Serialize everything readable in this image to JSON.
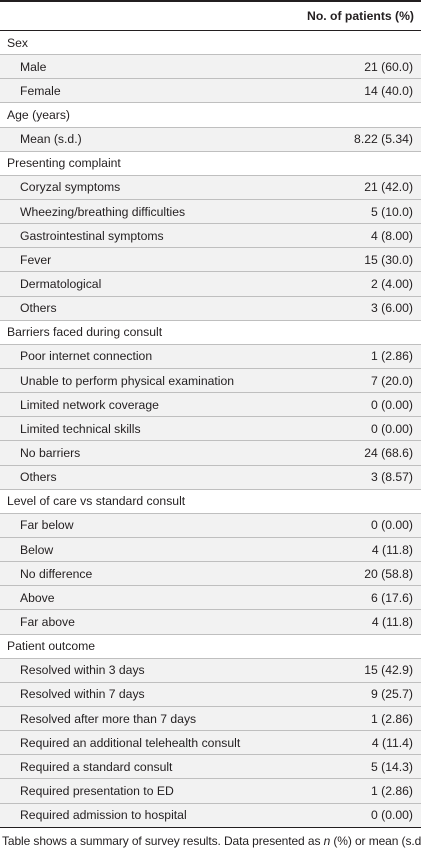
{
  "header": {
    "col1": "",
    "col2": "No. of patients (%)"
  },
  "sections": [
    {
      "title": "Sex",
      "rows": [
        {
          "label": "Male",
          "value": "21 (60.0)"
        },
        {
          "label": "Female",
          "value": "14 (40.0)"
        }
      ]
    },
    {
      "title": "Age (years)",
      "rows": [
        {
          "label": "Mean (s.d.)",
          "value": "8.22 (5.34)"
        }
      ]
    },
    {
      "title": "Presenting complaint",
      "rows": [
        {
          "label": "Coryzal symptoms",
          "value": "21 (42.0)"
        },
        {
          "label": "Wheezing/breathing difficulties",
          "value": "5 (10.0)"
        },
        {
          "label": "Gastrointestinal symptoms",
          "value": "4 (8.00)"
        },
        {
          "label": "Fever",
          "value": "15 (30.0)"
        },
        {
          "label": "Dermatological",
          "value": "2 (4.00)"
        },
        {
          "label": "Others",
          "value": "3 (6.00)"
        }
      ]
    },
    {
      "title": "Barriers faced during consult",
      "rows": [
        {
          "label": "Poor internet connection",
          "value": "1 (2.86)"
        },
        {
          "label": "Unable to perform physical examination",
          "value": "7 (20.0)"
        },
        {
          "label": "Limited network coverage",
          "value": "0 (0.00)"
        },
        {
          "label": "Limited technical skills",
          "value": "0 (0.00)"
        },
        {
          "label": "No barriers",
          "value": "24 (68.6)"
        },
        {
          "label": "Others",
          "value": "3 (8.57)"
        }
      ]
    },
    {
      "title": "Level of care vs standard consult",
      "rows": [
        {
          "label": "Far below",
          "value": "0 (0.00)"
        },
        {
          "label": "Below",
          "value": "4 (11.8)"
        },
        {
          "label": "No difference",
          "value": "20 (58.8)"
        },
        {
          "label": "Above",
          "value": "6 (17.6)"
        },
        {
          "label": "Far above",
          "value": "4 (11.8)"
        }
      ]
    },
    {
      "title": "Patient outcome",
      "rows": [
        {
          "label": "Resolved within 3 days",
          "value": "15 (42.9)"
        },
        {
          "label": "Resolved within 7 days",
          "value": "9 (25.7)"
        },
        {
          "label": "Resolved after more than 7 days",
          "value": "1 (2.86)"
        },
        {
          "label": "Required an additional telehealth consult",
          "value": "4 (11.4)"
        },
        {
          "label": "Required a standard consult",
          "value": "5 (14.3)"
        },
        {
          "label": "Required presentation to ED",
          "value": "1 (2.86)"
        },
        {
          "label": "Required admission to hospital",
          "value": "0 (0.00)"
        }
      ]
    }
  ],
  "footnote": {
    "prefix": "Table shows a summary of survey results. Data presented as ",
    "italic": "n",
    "suffix": " (%) or mean (s.d.)."
  }
}
